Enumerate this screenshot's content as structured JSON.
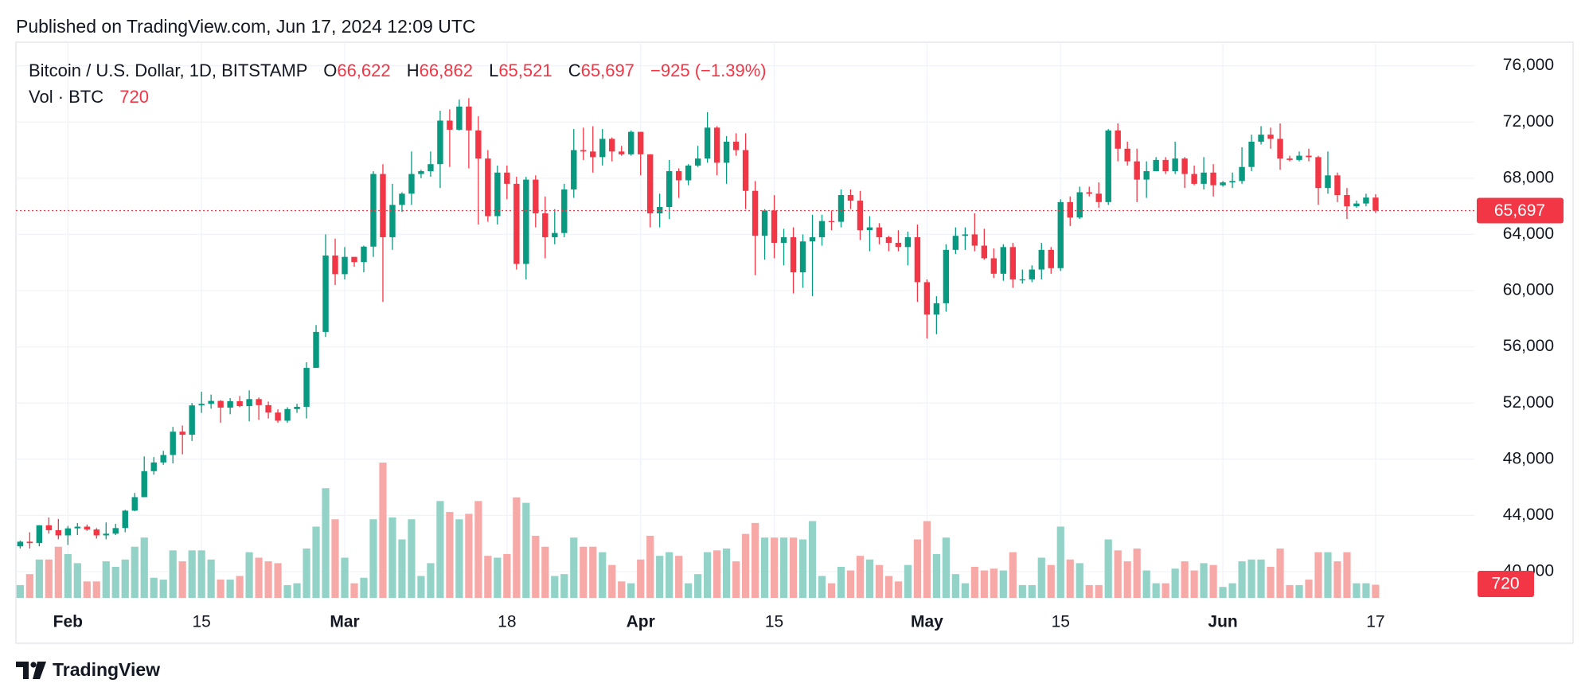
{
  "header": {
    "published": "Published on TradingView.com, Jun 17, 2024 12:09 UTC"
  },
  "footer": {
    "brand": "TradingView"
  },
  "chart_data": {
    "type": "candlestick",
    "legend": [
      {
        "key": "O",
        "value": "66,622"
      },
      {
        "key": "H",
        "value": "66,862"
      },
      {
        "key": "L",
        "value": "65,521"
      },
      {
        "key": "C",
        "value": "65,697"
      }
    ],
    "change": "−925 (−1.39%)",
    "price_line": {
      "value": 65697,
      "label": "65,697"
    },
    "categories": [
      null,
      null,
      null,
      null,
      null,
      "Feb",
      null,
      null,
      null,
      null,
      null,
      null,
      null,
      null,
      null,
      null,
      null,
      null,
      null,
      "15",
      null,
      null,
      null,
      null,
      null,
      null,
      null,
      null,
      null,
      null,
      null,
      null,
      null,
      null,
      "Mar",
      null,
      null,
      null,
      null,
      null,
      null,
      null,
      null,
      null,
      null,
      null,
      null,
      null,
      null,
      null,
      null,
      "18",
      null,
      null,
      null,
      null,
      null,
      null,
      null,
      null,
      null,
      null,
      null,
      null,
      null,
      "Apr",
      null,
      null,
      null,
      null,
      null,
      null,
      null,
      null,
      null,
      null,
      null,
      null,
      null,
      "15",
      null,
      null,
      null,
      null,
      null,
      null,
      null,
      null,
      null,
      null,
      null,
      null,
      null,
      null,
      null,
      "May",
      null,
      null,
      null,
      null,
      null,
      null,
      null,
      null,
      null,
      null,
      null,
      null,
      null,
      "15",
      null,
      null,
      null,
      null,
      null,
      null,
      null,
      null,
      null,
      null,
      null,
      null,
      null,
      null,
      null,
      null,
      "Jun",
      null,
      null,
      null,
      null,
      null,
      null,
      null,
      null,
      null,
      null,
      null,
      null,
      null,
      null,
      null,
      "17"
    ],
    "series": [
      {
        "name": "Bitcoin / U.S. Dollar, 1D, BITSTAMP",
        "up_color": "#089981",
        "down_color": "#f23645",
        "open": [
          41800,
          42130,
          42030,
          43300,
          42950,
          42580,
          43080,
          43200,
          43000,
          42580,
          42700,
          43100,
          44340,
          45300,
          47150,
          47770,
          48300,
          49960,
          49740,
          51830,
          51940,
          52150,
          51670,
          52130,
          51780,
          52280,
          51850,
          51320,
          50740,
          51570,
          51730,
          54500,
          57060,
          62500,
          61170,
          62400,
          62030,
          63130,
          68300,
          63800,
          66100,
          66900,
          68300,
          68500,
          69000,
          72100,
          71450,
          73100,
          71400,
          69400,
          65300,
          68400,
          67600,
          61900,
          67900,
          65500,
          63800,
          64100,
          67200,
          70000,
          69900,
          69500,
          70800,
          69900,
          69700,
          71300,
          69700,
          65500,
          65950,
          68500,
          67850,
          68900,
          69400,
          71600,
          69100,
          70600,
          70000,
          67100,
          63900,
          65700,
          63400,
          63800,
          61300,
          63500,
          63800,
          64950,
          64900,
          66800,
          66400,
          64300,
          64500,
          63800,
          63400,
          63100,
          63800,
          60600,
          58300,
          59100,
          62900,
          63900,
          64000,
          63200,
          62300,
          61200,
          63100,
          60800,
          60800,
          61500,
          62900,
          61600,
          66300,
          65200,
          67000,
          66900,
          66300,
          71400,
          70100,
          69200,
          67900,
          68500,
          69300,
          68500,
          69400,
          68300,
          67600,
          68400,
          67500,
          67700,
          67800,
          68800,
          70600,
          71100,
          70800,
          69400,
          69300,
          69600,
          69500,
          67300,
          68200,
          66800,
          66000,
          66200,
          66622
        ],
        "high": [
          42200,
          42800,
          43300,
          43850,
          43750,
          43250,
          43450,
          43350,
          43100,
          43500,
          43400,
          44400,
          45600,
          48200,
          48150,
          48600,
          50300,
          50400,
          52000,
          52800,
          52600,
          52200,
          52350,
          52500,
          52900,
          52400,
          52100,
          51550,
          51700,
          51950,
          54900,
          57550,
          64000,
          63700,
          63100,
          62400,
          63200,
          68500,
          69000,
          67600,
          67000,
          69900,
          68600,
          69900,
          72800,
          72900,
          73600,
          73700,
          72400,
          70000,
          68900,
          68900,
          68100,
          68100,
          68200,
          66700,
          65800,
          67600,
          71500,
          71600,
          71700,
          71500,
          70900,
          70300,
          71400,
          71300,
          69700,
          66900,
          69300,
          68700,
          69000,
          70300,
          72700,
          71700,
          71000,
          71200,
          71200,
          67800,
          65800,
          66800,
          64400,
          64500,
          64000,
          65400,
          65400,
          65700,
          67200,
          67200,
          67100,
          65300,
          64800,
          63900,
          64300,
          64200,
          64700,
          60800,
          59600,
          63300,
          64500,
          64500,
          65500,
          64400,
          63000,
          63300,
          63400,
          61500,
          61800,
          63400,
          63100,
          66500,
          66700,
          67400,
          67400,
          67700,
          71500,
          71900,
          70600,
          70100,
          69200,
          69500,
          69500,
          70600,
          69500,
          68900,
          69500,
          69000,
          67800,
          68400,
          70200,
          71100,
          71700,
          71600,
          71900,
          69600,
          69900,
          70100,
          69600,
          69900,
          68400,
          67300,
          66400,
          66900,
          66862
        ],
        "low": [
          41650,
          41650,
          41800,
          42700,
          42300,
          41900,
          42600,
          42900,
          42350,
          42300,
          42600,
          42800,
          44300,
          45300,
          46900,
          47600,
          47700,
          48350,
          49300,
          51300,
          51600,
          50600,
          51200,
          51700,
          50700,
          50800,
          50900,
          50600,
          50600,
          51300,
          50900,
          54500,
          56700,
          60400,
          60800,
          61700,
          61300,
          62400,
          59200,
          62900,
          65600,
          66100,
          68000,
          68100,
          67300,
          68800,
          71400,
          68700,
          64700,
          64900,
          64700,
          66500,
          61500,
          60800,
          64500,
          62300,
          63300,
          63800,
          66600,
          69300,
          68400,
          68900,
          69200,
          69600,
          69600,
          68200,
          64500,
          64500,
          65100,
          66600,
          67500,
          68800,
          69100,
          68200,
          67600,
          69600,
          65800,
          61100,
          62200,
          62300,
          61800,
          59800,
          60200,
          59600,
          63200,
          64300,
          64500,
          65800,
          63600,
          62800,
          63300,
          62800,
          62800,
          61800,
          59200,
          56600,
          56900,
          58500,
          62600,
          62900,
          62800,
          62200,
          60900,
          60700,
          60200,
          60500,
          60600,
          60800,
          61200,
          61400,
          64600,
          65100,
          66700,
          65900,
          66100,
          69200,
          68900,
          66300,
          66600,
          68500,
          68300,
          68300,
          67300,
          67500,
          67200,
          66700,
          67400,
          67300,
          67600,
          68500,
          70400,
          70100,
          68600,
          69200,
          69200,
          69200,
          66100,
          66900,
          66300,
          65100,
          65900,
          66000,
          65521
        ],
        "close": [
          42130,
          42030,
          43300,
          42950,
          42580,
          43080,
          43200,
          43000,
          42580,
          42700,
          43100,
          44340,
          45300,
          47150,
          47770,
          48300,
          49960,
          49740,
          51830,
          51940,
          52150,
          51670,
          52130,
          51780,
          52280,
          51850,
          51320,
          50740,
          51570,
          51730,
          54500,
          57060,
          62500,
          61170,
          62400,
          62030,
          63130,
          68300,
          63800,
          66100,
          66900,
          68300,
          68500,
          69000,
          72100,
          71450,
          73100,
          71400,
          69400,
          65300,
          68400,
          67600,
          61900,
          67900,
          65500,
          63800,
          64100,
          67200,
          70000,
          69900,
          69500,
          70800,
          69900,
          69700,
          71300,
          69700,
          65500,
          65950,
          68500,
          67850,
          68900,
          69400,
          71600,
          69100,
          70600,
          70000,
          67100,
          63900,
          65700,
          63400,
          63800,
          61300,
          63500,
          63800,
          64950,
          64900,
          66800,
          66400,
          64300,
          64500,
          63800,
          63400,
          63100,
          63800,
          60600,
          58300,
          59100,
          62900,
          63900,
          64000,
          63200,
          62300,
          61200,
          63100,
          60800,
          60800,
          61500,
          62900,
          61600,
          66300,
          65200,
          67000,
          66900,
          66300,
          71400,
          70100,
          69200,
          67900,
          68500,
          69300,
          68500,
          69400,
          68300,
          67600,
          68400,
          67500,
          67700,
          67800,
          68800,
          70600,
          71100,
          70800,
          69400,
          69300,
          69600,
          69500,
          67300,
          68200,
          66800,
          66000,
          66200,
          66622,
          65697
        ]
      },
      {
        "name": "Vol · BTC",
        "axis": "y2",
        "up_color": "#92d2c7",
        "down_color": "#f7a9a7",
        "values": [
          700,
          1300,
          2100,
          2100,
          2800,
          2400,
          1900,
          900,
          900,
          2000,
          1700,
          2100,
          2800,
          3300,
          1100,
          1000,
          2600,
          2000,
          2600,
          2600,
          2100,
          1000,
          1000,
          1200,
          2500,
          2200,
          2000,
          1900,
          700,
          800,
          2700,
          3900,
          6000,
          4300,
          2200,
          800,
          1100,
          4300,
          7400,
          4400,
          3200,
          4300,
          1200,
          1900,
          5300,
          4700,
          4300,
          4600,
          5300,
          2300,
          2200,
          2400,
          5500,
          5200,
          3400,
          2800,
          1200,
          1300,
          3300,
          2800,
          2800,
          2500,
          1800,
          900,
          800,
          2100,
          3400,
          2300,
          2500,
          2300,
          800,
          1300,
          2500,
          2600,
          2700,
          2000,
          3500,
          4100,
          3300,
          3300,
          3300,
          3300,
          3200,
          4200,
          1200,
          800,
          1700,
          1500,
          2300,
          2100,
          1800,
          1200,
          900,
          1800,
          3200,
          4200,
          2400,
          3300,
          1300,
          800,
          1700,
          1500,
          1600,
          1500,
          2500,
          700,
          700,
          2200,
          1800,
          3900,
          2100,
          1900,
          700,
          700,
          3200,
          2600,
          2000,
          2700,
          1500,
          800,
          800,
          1600,
          2000,
          1500,
          1900,
          1800,
          600,
          800,
          2000,
          2100,
          2100,
          1700,
          2700,
          700,
          700,
          1000,
          2500,
          2500,
          2000,
          2500,
          800,
          800,
          720
        ]
      }
    ],
    "ylim": [
      38130,
      77680
    ],
    "yticks": [
      {
        "value": 40000,
        "label": "40,000"
      },
      {
        "value": 44000,
        "label": "44,000"
      },
      {
        "value": 48000,
        "label": "48,000"
      },
      {
        "value": 52000,
        "label": "52,000"
      },
      {
        "value": 56000,
        "label": "56,000"
      },
      {
        "value": 60000,
        "label": "60,000"
      },
      {
        "value": 64000,
        "label": "64,000"
      },
      {
        "value": 68000,
        "label": "68,000"
      },
      {
        "value": 72000,
        "label": "72,000"
      },
      {
        "value": 76000,
        "label": "76,000"
      }
    ],
    "y2lim": [
      0,
      30400
    ],
    "grid": true
  }
}
